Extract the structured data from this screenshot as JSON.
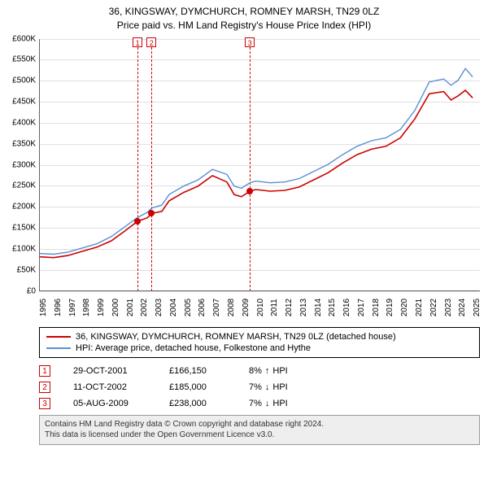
{
  "headline": {
    "line1": "36, KINGSWAY, DYMCHURCH, ROMNEY MARSH, TN29 0LZ",
    "line2": "Price paid vs. HM Land Registry's House Price Index (HPI)"
  },
  "chart": {
    "type": "line",
    "background_color": "#ffffff",
    "grid_color": "#e0e0e0",
    "axis_color": "#666666",
    "text_color": "#000000",
    "label_fontsize": 10,
    "ylim": [
      0,
      600000
    ],
    "ytick_step": 50000,
    "ytick_labels": [
      "£0",
      "£50K",
      "£100K",
      "£150K",
      "£200K",
      "£250K",
      "£300K",
      "£350K",
      "£400K",
      "£450K",
      "£500K",
      "£550K",
      "£600K"
    ],
    "x_years": [
      1995,
      1996,
      1997,
      1998,
      1999,
      2000,
      2001,
      2002,
      2003,
      2004,
      2005,
      2006,
      2007,
      2008,
      2009,
      2010,
      2011,
      2012,
      2013,
      2014,
      2015,
      2016,
      2017,
      2018,
      2019,
      2020,
      2021,
      2022,
      2023,
      2024,
      2025
    ],
    "x_range": [
      1995,
      2025.5
    ],
    "series": [
      {
        "key": "property",
        "color": "#cc0000",
        "width": 1.6,
        "points": [
          [
            1995,
            82000
          ],
          [
            1996,
            80000
          ],
          [
            1997,
            85000
          ],
          [
            1998,
            95000
          ],
          [
            1999,
            105000
          ],
          [
            2000,
            120000
          ],
          [
            2001,
            145000
          ],
          [
            2001.8,
            166150
          ],
          [
            2002.5,
            175000
          ],
          [
            2002.8,
            185000
          ],
          [
            2003.5,
            190000
          ],
          [
            2004,
            215000
          ],
          [
            2005,
            235000
          ],
          [
            2006,
            250000
          ],
          [
            2007,
            275000
          ],
          [
            2008,
            260000
          ],
          [
            2008.5,
            230000
          ],
          [
            2009,
            225000
          ],
          [
            2009.6,
            238000
          ],
          [
            2010,
            242000
          ],
          [
            2011,
            238000
          ],
          [
            2012,
            240000
          ],
          [
            2013,
            248000
          ],
          [
            2014,
            265000
          ],
          [
            2015,
            282000
          ],
          [
            2016,
            305000
          ],
          [
            2017,
            325000
          ],
          [
            2018,
            338000
          ],
          [
            2019,
            345000
          ],
          [
            2020,
            365000
          ],
          [
            2021,
            410000
          ],
          [
            2022,
            470000
          ],
          [
            2023,
            475000
          ],
          [
            2023.5,
            455000
          ],
          [
            2024,
            465000
          ],
          [
            2024.5,
            478000
          ],
          [
            2025,
            460000
          ]
        ]
      },
      {
        "key": "hpi",
        "color": "#5b8fd6",
        "width": 1.4,
        "points": [
          [
            1995,
            90000
          ],
          [
            1996,
            88000
          ],
          [
            1997,
            93000
          ],
          [
            1998,
            103000
          ],
          [
            1999,
            113000
          ],
          [
            2000,
            130000
          ],
          [
            2001,
            155000
          ],
          [
            2001.8,
            175000
          ],
          [
            2002.5,
            188000
          ],
          [
            2002.8,
            198000
          ],
          [
            2003.5,
            205000
          ],
          [
            2004,
            230000
          ],
          [
            2005,
            250000
          ],
          [
            2006,
            265000
          ],
          [
            2007,
            290000
          ],
          [
            2008,
            278000
          ],
          [
            2008.5,
            250000
          ],
          [
            2009,
            245000
          ],
          [
            2009.6,
            258000
          ],
          [
            2010,
            262000
          ],
          [
            2011,
            258000
          ],
          [
            2012,
            260000
          ],
          [
            2013,
            268000
          ],
          [
            2014,
            285000
          ],
          [
            2015,
            302000
          ],
          [
            2016,
            325000
          ],
          [
            2017,
            345000
          ],
          [
            2018,
            358000
          ],
          [
            2019,
            365000
          ],
          [
            2020,
            385000
          ],
          [
            2021,
            430000
          ],
          [
            2022,
            498000
          ],
          [
            2023,
            505000
          ],
          [
            2023.5,
            490000
          ],
          [
            2024,
            502000
          ],
          [
            2024.5,
            530000
          ],
          [
            2025,
            510000
          ]
        ]
      }
    ],
    "tx_markers": [
      {
        "n": "1",
        "x": 2001.82,
        "y": 166150
      },
      {
        "n": "2",
        "x": 2002.78,
        "y": 185000
      },
      {
        "n": "3",
        "x": 2009.59,
        "y": 238000
      }
    ],
    "tx_marker_color": "#cc0000"
  },
  "legend": {
    "items": [
      {
        "label": "36, KINGSWAY, DYMCHURCH, ROMNEY MARSH, TN29 0LZ (detached house)",
        "color": "#cc0000"
      },
      {
        "label": "HPI: Average price, detached house, Folkestone and Hythe",
        "color": "#5b8fd6"
      }
    ]
  },
  "transactions": [
    {
      "n": "1",
      "date": "29-OCT-2001",
      "price": "£166,150",
      "delta_pct": "8%",
      "delta_dir": "up",
      "delta_ref": "HPI"
    },
    {
      "n": "2",
      "date": "11-OCT-2002",
      "price": "£185,000",
      "delta_pct": "7%",
      "delta_dir": "down",
      "delta_ref": "HPI"
    },
    {
      "n": "3",
      "date": "05-AUG-2009",
      "price": "£238,000",
      "delta_pct": "7%",
      "delta_dir": "down",
      "delta_ref": "HPI"
    }
  ],
  "footer": {
    "line1": "Contains HM Land Registry data © Crown copyright and database right 2024.",
    "line2": "This data is licensed under the Open Government Licence v3.0."
  }
}
